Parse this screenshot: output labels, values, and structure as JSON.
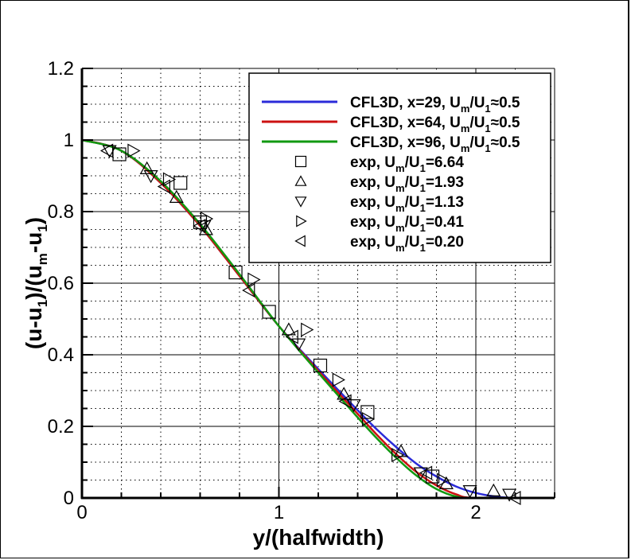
{
  "chart_data": {
    "type": "line",
    "title": "",
    "xlabel": "y/(halfwidth)",
    "ylabel": "(u-u1)/(um-u1)",
    "xlim": [
      0,
      2.4
    ],
    "ylim": [
      0,
      1.2
    ],
    "x_ticks": [
      "0",
      "1",
      "2"
    ],
    "y_ticks": [
      "0",
      "0.2",
      "0.4",
      "0.6",
      "0.8",
      "1",
      "1.2"
    ],
    "grid": true,
    "legend_position": "upper right",
    "series": [
      {
        "name": "CFL3D, x=29, Um/U1≈0.5",
        "kind": "line",
        "color": "#2b2bd9",
        "x": [
          0,
          0.2,
          0.4,
          0.6,
          0.8,
          1.0,
          1.2,
          1.4,
          1.5,
          1.6,
          1.7,
          1.8,
          1.9,
          2.0,
          2.1,
          2.2,
          2.4
        ],
        "y": [
          1.0,
          0.97,
          0.88,
          0.76,
          0.62,
          0.48,
          0.36,
          0.245,
          0.19,
          0.14,
          0.095,
          0.06,
          0.032,
          0.014,
          0.004,
          0.0,
          0.0
        ]
      },
      {
        "name": "CFL3D, x=64, Um/U1≈0.5",
        "kind": "line",
        "color": "#cc1111",
        "x": [
          0,
          0.2,
          0.4,
          0.6,
          0.8,
          1.0,
          1.2,
          1.4,
          1.5,
          1.6,
          1.7,
          1.8,
          1.9,
          2.0,
          2.4
        ],
        "y": [
          1.0,
          0.97,
          0.88,
          0.76,
          0.62,
          0.48,
          0.355,
          0.235,
          0.175,
          0.12,
          0.072,
          0.035,
          0.01,
          0.0,
          0.0
        ]
      },
      {
        "name": "CFL3D, x=96, Um/U1≈0.5",
        "kind": "line",
        "color": "#119911",
        "x": [
          0,
          0.2,
          0.4,
          0.6,
          0.8,
          1.0,
          1.2,
          1.4,
          1.5,
          1.6,
          1.7,
          1.8,
          1.9,
          2.0,
          2.4
        ],
        "y": [
          1.0,
          0.97,
          0.885,
          0.765,
          0.625,
          0.48,
          0.35,
          0.225,
          0.165,
          0.11,
          0.062,
          0.025,
          0.004,
          0.0,
          0.0
        ]
      },
      {
        "name": "exp, Um/U1=6.64",
        "kind": "marker",
        "marker": "square",
        "x": [
          0.19,
          0.5,
          0.6,
          0.78,
          0.95,
          1.21,
          1.45,
          1.78
        ],
        "y": [
          0.96,
          0.88,
          0.77,
          0.63,
          0.52,
          0.37,
          0.24,
          0.06
        ]
      },
      {
        "name": "exp, Um/U1=1.93",
        "kind": "marker",
        "marker": "triangle-up",
        "x": [
          0.33,
          0.48,
          0.63,
          1.05,
          1.33,
          1.62,
          1.85,
          2.09
        ],
        "y": [
          0.92,
          0.84,
          0.75,
          0.47,
          0.29,
          0.13,
          0.04,
          0.02
        ]
      },
      {
        "name": "exp, Um/U1=1.13",
        "kind": "marker",
        "marker": "triangle-down",
        "x": [
          0.14,
          0.35,
          0.62,
          1.1,
          1.38,
          1.72,
          1.97,
          2.17
        ],
        "y": [
          0.97,
          0.9,
          0.76,
          0.43,
          0.26,
          0.07,
          0.02,
          0.01
        ]
      },
      {
        "name": "exp, Um/U1=0.41",
        "kind": "marker",
        "marker": "triangle-right",
        "x": [
          0.26,
          0.44,
          0.63,
          0.87,
          1.14,
          1.3,
          1.45,
          1.6,
          1.83
        ],
        "y": [
          0.97,
          0.89,
          0.78,
          0.61,
          0.47,
          0.33,
          0.22,
          0.12,
          0.05
        ]
      },
      {
        "name": "exp, Um/U1=0.20",
        "kind": "marker",
        "marker": "triangle-left",
        "x": [
          0.13,
          0.42,
          0.6,
          0.85,
          1.07,
          1.34,
          1.75,
          2.2
        ],
        "y": [
          0.97,
          0.87,
          0.76,
          0.58,
          0.45,
          0.27,
          0.07,
          0.0
        ]
      }
    ]
  },
  "axes": {
    "xlabel": "y/(halfwidth)",
    "ylabel_main": "(u-u",
    "ylabel_sub1": "1",
    "ylabel_mid": ")/(u",
    "ylabel_sub2": "m",
    "ylabel_mid2": "-u",
    "ylabel_sub3": "1",
    "ylabel_end": ")"
  },
  "legend": {
    "entries": [
      {
        "pre": "CFL3D, x=29, U",
        "sub1": "m",
        "mid": "/U",
        "sub2": "1",
        "post": "≈0.5"
      },
      {
        "pre": "CFL3D, x=64, U",
        "sub1": "m",
        "mid": "/U",
        "sub2": "1",
        "post": "≈0.5"
      },
      {
        "pre": "CFL3D, x=96, U",
        "sub1": "m",
        "mid": "/U",
        "sub2": "1",
        "post": "≈0.5"
      },
      {
        "pre": "exp, U",
        "sub1": "m",
        "mid": "/U",
        "sub2": "1",
        "post": "=6.64"
      },
      {
        "pre": "exp, U",
        "sub1": "m",
        "mid": "/U",
        "sub2": "1",
        "post": "=1.93"
      },
      {
        "pre": "exp, U",
        "sub1": "m",
        "mid": "/U",
        "sub2": "1",
        "post": "=1.13"
      },
      {
        "pre": "exp, U",
        "sub1": "m",
        "mid": "/U",
        "sub2": "1",
        "post": "=0.41"
      },
      {
        "pre": "exp, U",
        "sub1": "m",
        "mid": "/U",
        "sub2": "1",
        "post": "=0.20"
      }
    ]
  }
}
